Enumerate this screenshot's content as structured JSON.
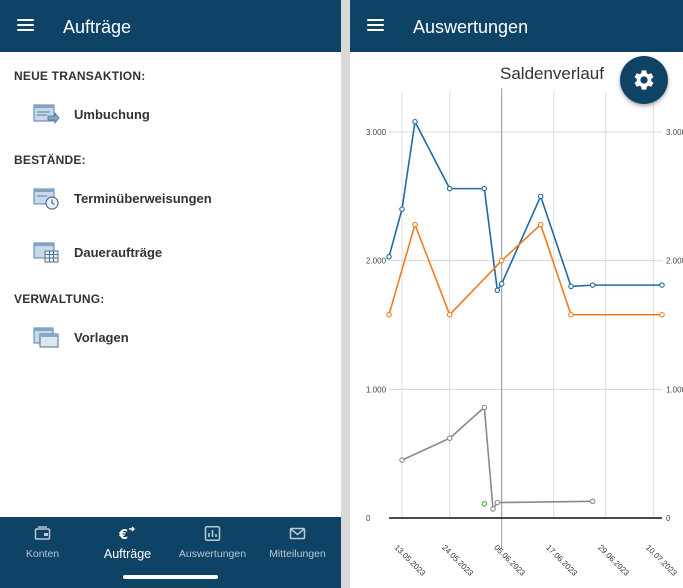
{
  "left": {
    "title": "Aufträge",
    "sections": [
      {
        "label": "NEUE TRANSAKTION:",
        "items": [
          {
            "label": "Umbuchung",
            "icon": "transfer-icon"
          }
        ]
      },
      {
        "label": "BESTÄNDE:",
        "items": [
          {
            "label": "Terminüberweisungen",
            "icon": "scheduled-transfer-icon"
          },
          {
            "label": "Daueraufträge",
            "icon": "standing-order-icon"
          }
        ]
      },
      {
        "label": "VERWALTUNG:",
        "items": [
          {
            "label": "Vorlagen",
            "icon": "templates-icon"
          }
        ]
      }
    ],
    "bottom_nav": [
      {
        "label": "Konten",
        "icon": "accounts-icon",
        "active": false
      },
      {
        "label": "Aufträge",
        "icon": "orders-icon",
        "active": true
      },
      {
        "label": "Auswertungen",
        "icon": "analytics-icon",
        "active": false
      },
      {
        "label": "Mitteilungen",
        "icon": "mail-icon",
        "active": false
      }
    ]
  },
  "right": {
    "title": "Auswertungen",
    "fab_icon": "gear-icon"
  },
  "colors": {
    "appbar": "#0e4366",
    "series_blue": "#1f6aa5",
    "series_orange": "#f07c1e",
    "series_gray": "#8a8a8a",
    "marker_green": "#2fb52f"
  },
  "chart_data": {
    "type": "line",
    "title": "Saldenverlauf",
    "ylim": [
      0,
      3000
    ],
    "y_ticks": [
      "0",
      "1.000",
      "2.000",
      "3.000"
    ],
    "y_tick_values": [
      0,
      1000,
      2000,
      3000
    ],
    "x_tick_labels": [
      "13.05.2023",
      "24.05.2023",
      "05.06.2023",
      "17.06.2023",
      "29.06.2023",
      "10.07.2023"
    ],
    "x_tick_dates": [
      "2023-05-13",
      "2023-05-24",
      "2023-06-05",
      "2023-06-17",
      "2023-06-29",
      "2023-07-10"
    ],
    "xlim": [
      "2023-05-10",
      "2023-07-12"
    ],
    "today_marker": "2023-06-05",
    "grid": true,
    "series": [
      {
        "color": "#1f6aa5",
        "points": [
          [
            "2023-05-10",
            2030
          ],
          [
            "2023-05-13",
            2400
          ],
          [
            "2023-05-16",
            3080
          ],
          [
            "2023-05-24",
            2560
          ],
          [
            "2023-06-01",
            2560
          ],
          [
            "2023-06-04",
            1770
          ],
          [
            "2023-06-05",
            1820
          ],
          [
            "2023-06-14",
            2500
          ],
          [
            "2023-06-21",
            1800
          ],
          [
            "2023-06-26",
            1810
          ],
          [
            "2023-07-12",
            1810
          ]
        ]
      },
      {
        "color": "#f07c1e",
        "points": [
          [
            "2023-05-10",
            1580
          ],
          [
            "2023-05-16",
            2280
          ],
          [
            "2023-05-24",
            1580
          ],
          [
            "2023-06-05",
            2000
          ],
          [
            "2023-06-14",
            2280
          ],
          [
            "2023-06-21",
            1580
          ],
          [
            "2023-07-12",
            1580
          ]
        ]
      },
      {
        "color": "#8a8a8a",
        "points": [
          [
            "2023-05-13",
            450
          ],
          [
            "2023-05-24",
            620
          ],
          [
            "2023-06-01",
            860
          ],
          [
            "2023-06-03",
            70
          ],
          [
            "2023-06-04",
            120
          ],
          [
            "2023-06-26",
            130
          ]
        ]
      },
      {
        "color": "#2fb52f",
        "points": [
          [
            "2023-06-01",
            110
          ]
        ]
      }
    ]
  }
}
